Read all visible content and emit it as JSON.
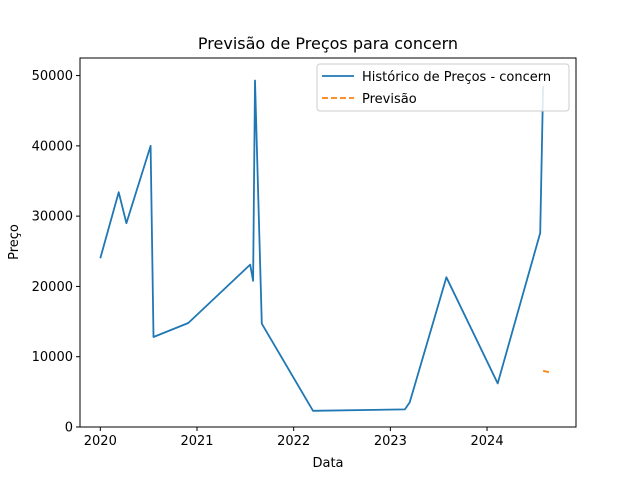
{
  "chart_data": {
    "type": "line",
    "title": "Previsão de Preços para concern",
    "xlabel": "Data",
    "ylabel": "Preço",
    "xlim": [
      2019.79,
      2024.92
    ],
    "ylim": [
      0,
      52500
    ],
    "x_ticks": [
      2020,
      2021,
      2022,
      2023,
      2024
    ],
    "x_tick_labels": [
      "2020",
      "2021",
      "2022",
      "2023",
      "2024"
    ],
    "y_ticks": [
      0,
      10000,
      20000,
      30000,
      40000,
      50000
    ],
    "y_tick_labels": [
      "0",
      "10000",
      "20000",
      "30000",
      "40000",
      "50000"
    ],
    "legend_position": "top-right",
    "grid": false,
    "series": [
      {
        "name": "Histórico de Preços - concern",
        "color": "#1f77b4",
        "style": "solid",
        "points": [
          [
            2020.0,
            24000
          ],
          [
            2020.19,
            33400
          ],
          [
            2020.27,
            29000
          ],
          [
            2020.52,
            40000
          ],
          [
            2020.55,
            12800
          ],
          [
            2020.91,
            14800
          ],
          [
            2021.55,
            23100
          ],
          [
            2021.58,
            20800
          ],
          [
            2021.6,
            49300
          ],
          [
            2021.67,
            14700
          ],
          [
            2022.2,
            2300
          ],
          [
            2023.15,
            2500
          ],
          [
            2023.2,
            3500
          ],
          [
            2023.58,
            21300
          ],
          [
            2024.11,
            6200
          ],
          [
            2024.55,
            27600
          ],
          [
            2024.58,
            48500
          ]
        ]
      },
      {
        "name": "Previsão",
        "color": "#ff7f0e",
        "style": "dashed",
        "points": [
          [
            2024.58,
            8000
          ],
          [
            2024.67,
            7700
          ]
        ]
      }
    ]
  }
}
